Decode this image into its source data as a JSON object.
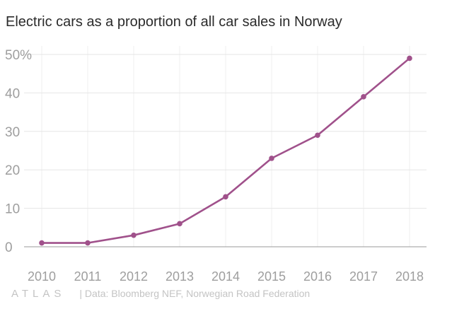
{
  "chart_data": {
    "type": "line",
    "title": "Electric cars as a proportion of all car sales in Norway",
    "xlabel": "",
    "ylabel": "",
    "x": [
      "2010",
      "2011",
      "2012",
      "2013",
      "2014",
      "2015",
      "2016",
      "2017",
      "2018"
    ],
    "series": [
      {
        "values": [
          1,
          1,
          3,
          6,
          13,
          23,
          29,
          39,
          49
        ]
      }
    ],
    "ylim": [
      0,
      50
    ],
    "yticks": [
      0,
      10,
      20,
      30,
      40,
      50
    ],
    "ytick_labels": [
      "0",
      "10",
      "20",
      "30",
      "40",
      "50%"
    ],
    "grid": true,
    "line_color": "#a0518b",
    "source": "| Data: Bloomberg NEF, Norwegian Road Federation",
    "logo": "ATLAS"
  }
}
